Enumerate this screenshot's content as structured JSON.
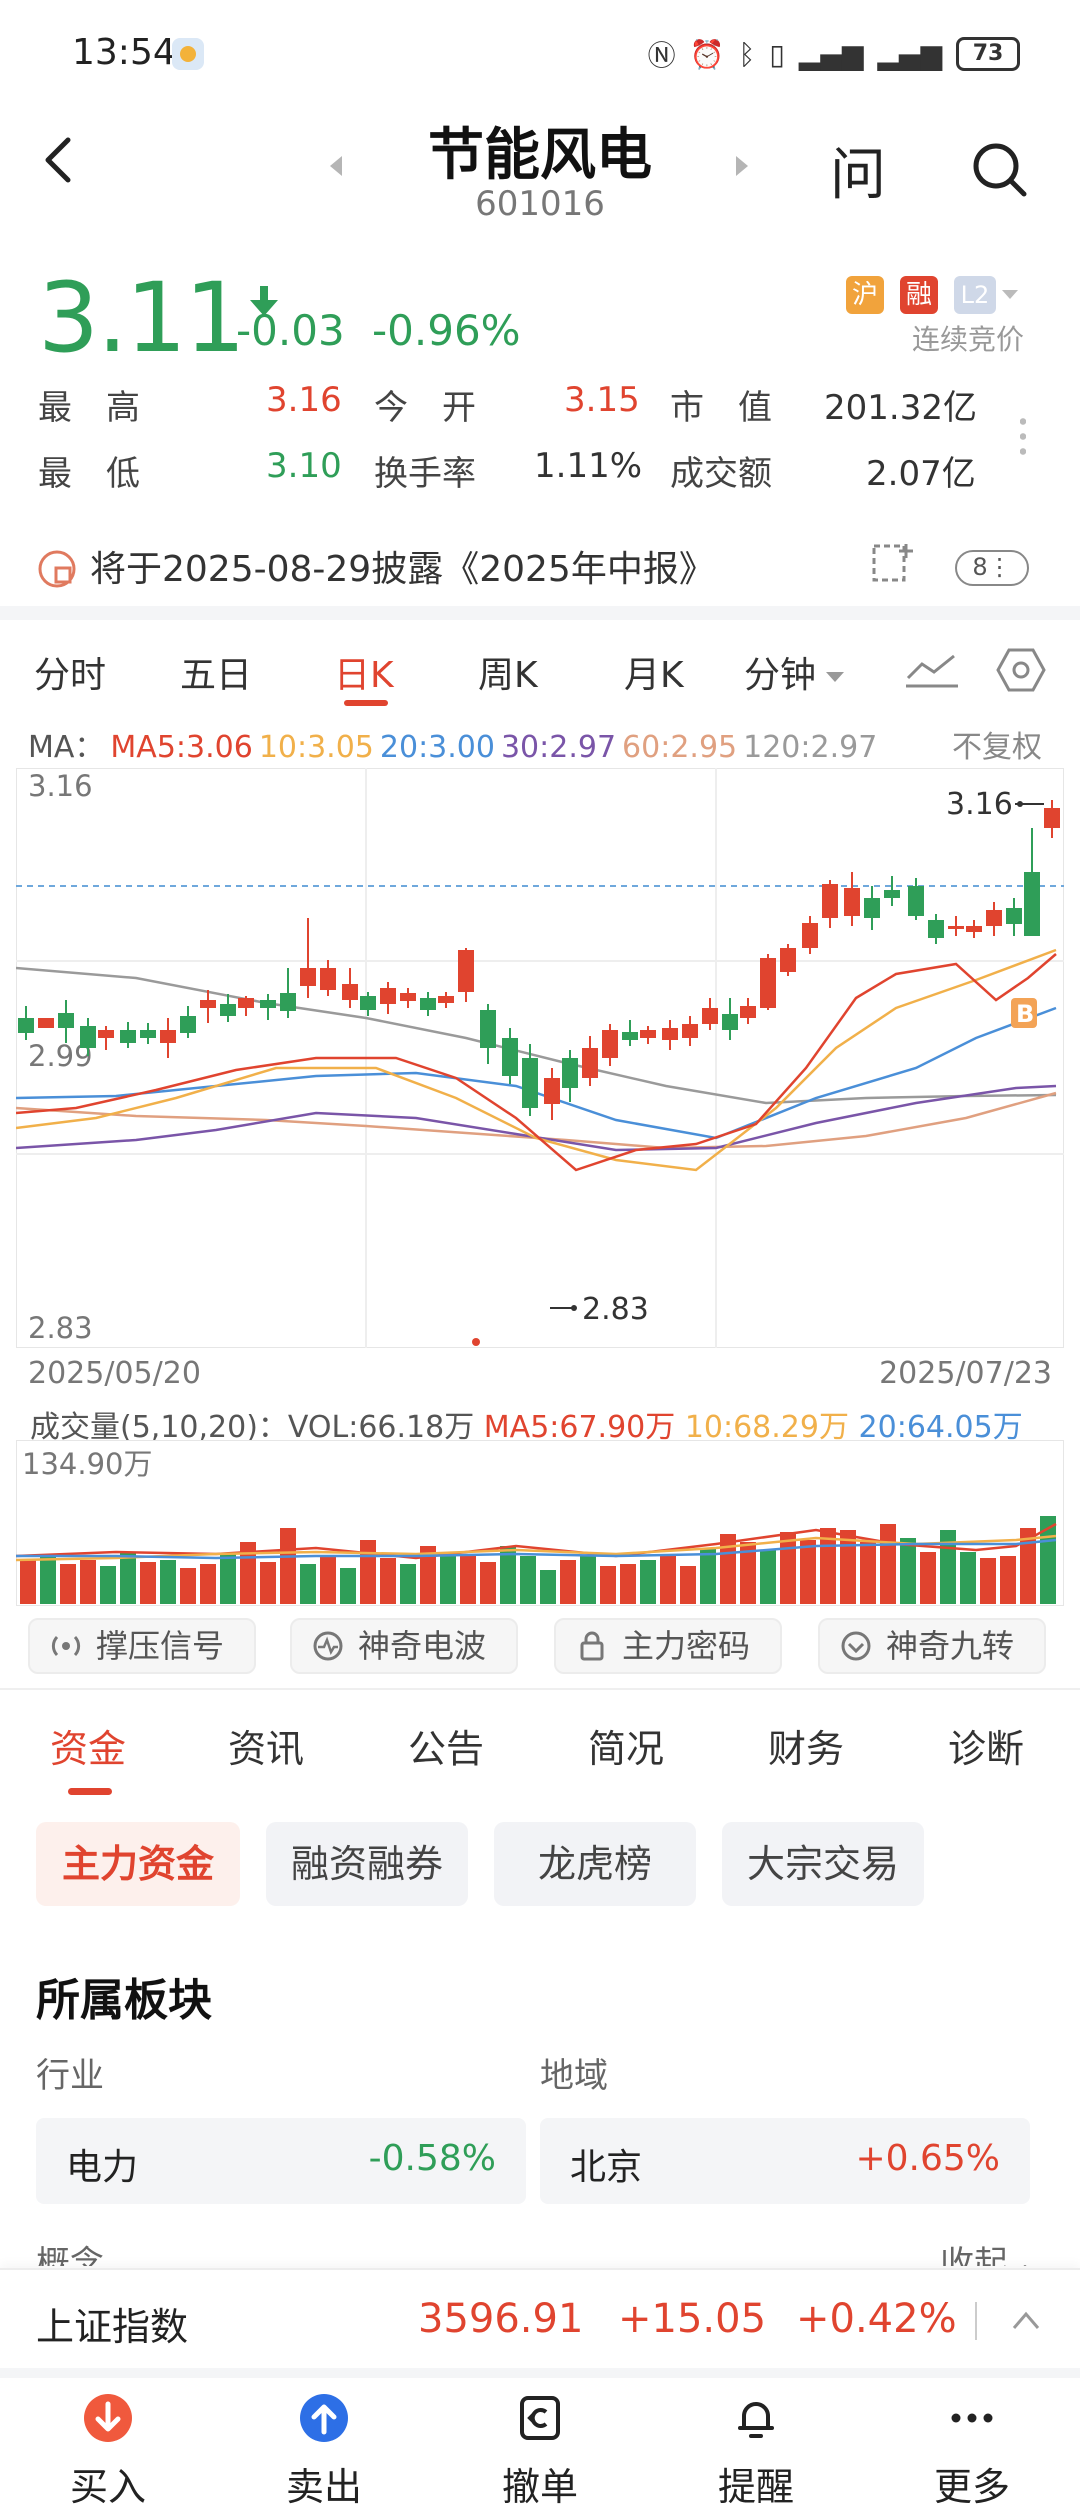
{
  "status": {
    "time": "13:54",
    "battery": "73"
  },
  "header": {
    "title": "节能风电",
    "code": "601016",
    "ask": "问"
  },
  "quote": {
    "price": "3.11",
    "change": "-0.03",
    "pct": "-0.96%",
    "badges": [
      "沪",
      "融",
      "L2"
    ],
    "session": "连续竞价",
    "high_label": "最　高",
    "high": "3.16",
    "open_label": "今　开",
    "open": "3.15",
    "mcap_label": "市　值",
    "mcap": "201.32亿",
    "low_label": "最　低",
    "low": "3.10",
    "turnover_label": "换手率",
    "turnover": "1.11%",
    "amount_label": "成交额",
    "amount": "2.07亿"
  },
  "report": {
    "text": "将于2025-08-29披露《2025年中报》",
    "count": "8"
  },
  "period_tabs": [
    "分时",
    "五日",
    "日K",
    "周K",
    "月K",
    "分钟"
  ],
  "ma": {
    "prefix": "MA：",
    "ma5": "MA5:3.06",
    "ma10": "10:3.05",
    "ma20": "20:3.00",
    "ma30": "30:2.97",
    "ma60": "60:2.95",
    "ma120": "120:2.97",
    "adjust": "不复权",
    "colors": {
      "ma5": "#e0442f",
      "ma10": "#f1b04a",
      "ma20": "#4a8fd8",
      "ma30": "#7a55a8",
      "ma60": "#e0a080",
      "ma120": "#9a9a9a"
    }
  },
  "kline": {
    "y_top": "3.16",
    "y_mid": "2.99",
    "y_bot": "2.83",
    "max_mark": "3.16",
    "min_mark": "2.83",
    "buy_mark": "B",
    "start_date": "2025/05/20",
    "end_date": "2025/07/23"
  },
  "volume": {
    "prefix": "成交量(5,10,20)：VOL:66.18万",
    "ma5": "MA5:67.90万",
    "ma10": "10:68.29万",
    "ma20": "20:64.05万",
    "max": "134.90万"
  },
  "signals": [
    "撑压信号",
    "神奇电波",
    "主力密码",
    "神奇九转"
  ],
  "section_tabs": [
    "资金",
    "资讯",
    "公告",
    "简况",
    "财务",
    "诊断"
  ],
  "sub_tabs": [
    "主力资金",
    "融资融券",
    "龙虎榜",
    "大宗交易"
  ],
  "sector": {
    "title": "所属板块",
    "industry_label": "行业",
    "region_label": "地域",
    "industry_name": "电力",
    "industry_pct": "-0.58%",
    "region_name": "北京",
    "region_pct": "+0.65%",
    "concept_label": "概念",
    "collapse": "收起"
  },
  "index": {
    "name": "上证指数",
    "value": "3596.91",
    "change": "+15.05",
    "pct": "+0.42%"
  },
  "nav": [
    "买入",
    "卖出",
    "撤单",
    "提醒",
    "更多"
  ]
}
